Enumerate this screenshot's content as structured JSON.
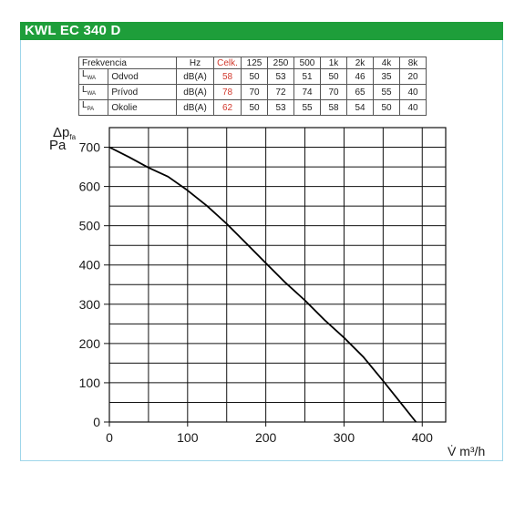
{
  "title": "KWL EC 340 D",
  "colors": {
    "header_bg": "#1e9e3a",
    "header_text": "#ffffff",
    "total_column": "#d23a2e",
    "panel_border": "#9fd6ea"
  },
  "noise_table": {
    "header": [
      "Frekvencia",
      "Hz",
      "Celk.",
      "125",
      "250",
      "500",
      "1k",
      "2k",
      "4k",
      "8k"
    ],
    "rows": [
      {
        "symbol": "L",
        "symbol_sub": "WA",
        "name": "Odvod",
        "unit": "dB(A)",
        "values": [
          "58",
          "50",
          "53",
          "51",
          "50",
          "46",
          "35",
          "20"
        ]
      },
      {
        "symbol": "L",
        "symbol_sub": "WA",
        "name": "Prívod",
        "unit": "dB(A)",
        "values": [
          "78",
          "70",
          "72",
          "74",
          "70",
          "65",
          "55",
          "40"
        ]
      },
      {
        "symbol": "L",
        "symbol_sub": "PA",
        "name": "Okolie",
        "unit": "dB(A)",
        "values": [
          "62",
          "50",
          "53",
          "55",
          "58",
          "54",
          "50",
          "40"
        ]
      }
    ]
  },
  "chart_data": {
    "type": "line",
    "ylabel_main": "Δp",
    "ylabel_sub": "fa",
    "ylabel_unit": "Pa",
    "xlabel_sym": "V̇",
    "xlabel_unit": "m³/h",
    "xlim": [
      0,
      430
    ],
    "ylim": [
      0,
      750
    ],
    "xticks": [
      0,
      100,
      200,
      300,
      400
    ],
    "yticks": [
      0,
      100,
      200,
      300,
      400,
      500,
      600,
      700
    ],
    "grid": true,
    "series": [
      {
        "x": [
          0,
          25,
          50,
          75,
          100,
          125,
          150,
          175,
          200,
          225,
          250,
          275,
          300,
          325,
          350,
          370,
          392
        ],
        "y": [
          700,
          675,
          648,
          625,
          590,
          550,
          505,
          455,
          405,
          355,
          310,
          260,
          215,
          165,
          105,
          55,
          0
        ]
      }
    ]
  }
}
